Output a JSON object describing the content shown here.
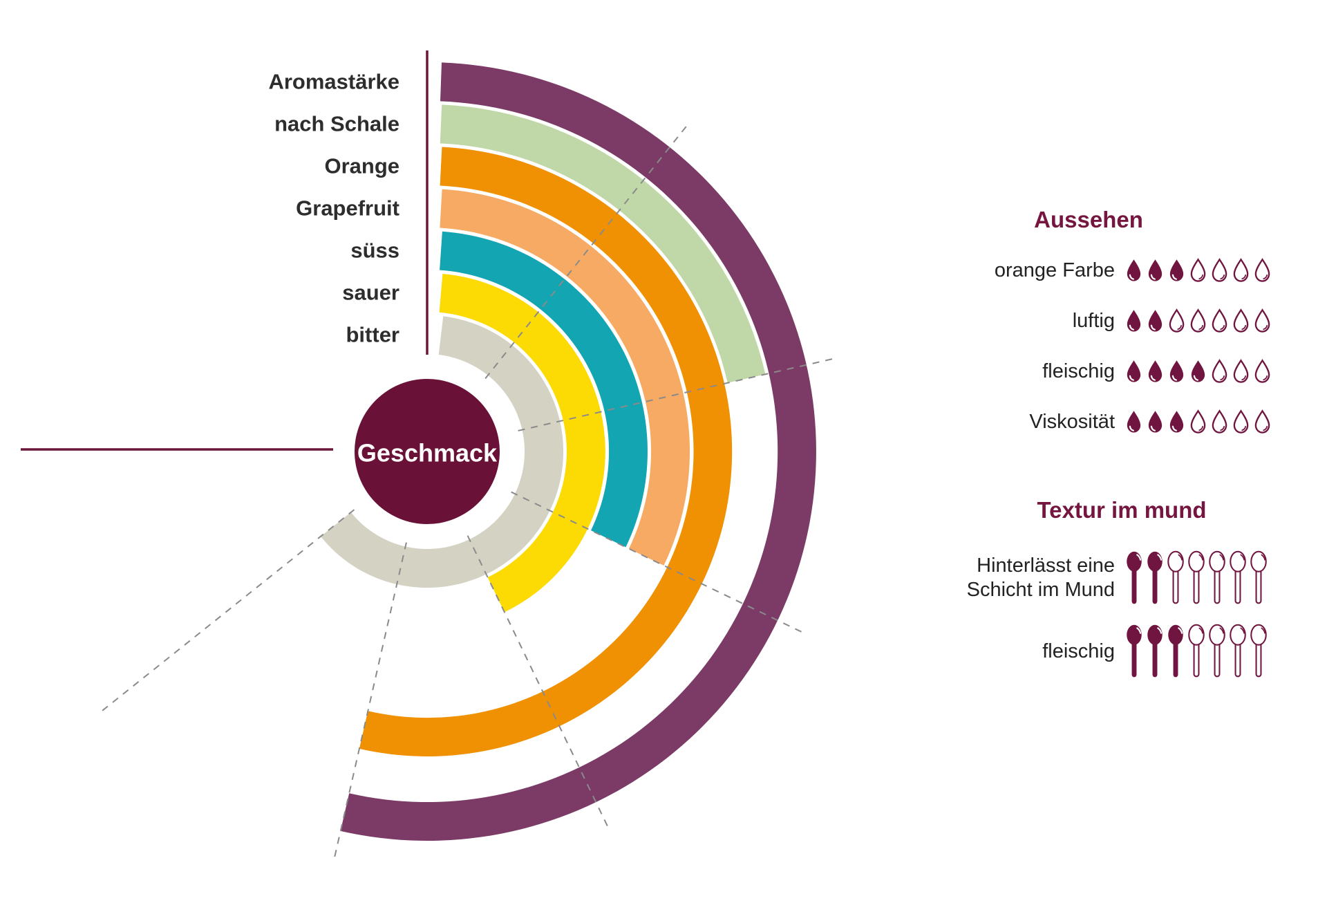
{
  "colors": {
    "background": "#ffffff",
    "burgundy_dark": "#6a1138",
    "burgundy_heading": "#74163f",
    "icon_fill": "#701440",
    "gridline": "#8a8a8a",
    "axis_line": "#6b1538",
    "category_label": "#2d2d2d",
    "row_label": "#222222",
    "center_text": "#ffffff"
  },
  "chart_data": [
    {
      "type": "radial_bar",
      "title": "Geschmack",
      "center_label": "Geschmack",
      "unit_max": 7,
      "angle_span_deg": 270,
      "direction": "clockwise",
      "categories": [
        "Aromastärke",
        "nach Schale",
        "Orange",
        "Grapefruit",
        "süss",
        "sauer",
        "bitter"
      ],
      "values": [
        5,
        2,
        5,
        3,
        3,
        4,
        6
      ],
      "colors": [
        "#7c3b66",
        "#c0d7a8",
        "#f09103",
        "#f6aa64",
        "#14a5b2",
        "#fcda04",
        "#d4d2c3"
      ],
      "gridline_values": [
        1,
        2,
        3,
        4,
        5,
        6
      ],
      "grid_on": true,
      "legend_position": "left-labels"
    },
    {
      "type": "icon_rating",
      "title": "Aussehen",
      "icon": "drop",
      "max": 7,
      "rows": [
        {
          "label_lines": [
            "orange Farbe"
          ],
          "value": 3
        },
        {
          "label_lines": [
            "luftig"
          ],
          "value": 2
        },
        {
          "label_lines": [
            "fleischig"
          ],
          "value": 4
        },
        {
          "label_lines": [
            "Viskosität"
          ],
          "value": 3
        }
      ]
    },
    {
      "type": "icon_rating",
      "title": "Textur im mund",
      "icon": "spoon",
      "max": 7,
      "rows": [
        {
          "label_lines": [
            "Hinterlässt eine",
            "Schicht im Mund"
          ],
          "value": 2
        },
        {
          "label_lines": [
            "fleischig"
          ],
          "value": 3
        }
      ]
    }
  ]
}
